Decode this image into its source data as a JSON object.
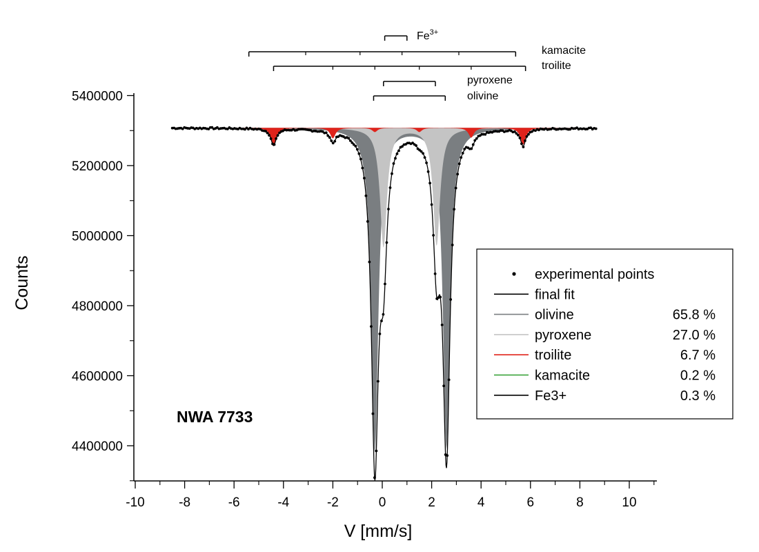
{
  "chart_data": {
    "type": "line",
    "sample_label": "NWA 7733",
    "xlabel": "V [mm/s]",
    "ylabel": "Counts",
    "xlim": [
      -10,
      11
    ],
    "ylim": [
      4300000,
      5400000
    ],
    "x_ticks": [
      -10,
      -8,
      -6,
      -4,
      -2,
      0,
      2,
      4,
      6,
      8,
      10
    ],
    "x_tick_labels": [
      "-10",
      "-8",
      "-6",
      "-4",
      "-2",
      "0",
      "2",
      "4",
      "6",
      "8",
      "10"
    ],
    "y_ticks": [
      4400000,
      4600000,
      4800000,
      5000000,
      5200000,
      5400000
    ],
    "y_tick_labels": [
      "4400000",
      "4600000",
      "4800000",
      "5000000",
      "5200000",
      "5400000"
    ],
    "baseline": 5308000,
    "x_range_data": [
      -8.5,
      8.7
    ],
    "olivine_peaks": [
      {
        "center": -0.3,
        "depth": 925000,
        "hwhm": 0.17
      },
      {
        "center": 2.6,
        "depth": 915000,
        "hwhm": 0.17
      }
    ],
    "pyroxene_peaks": [
      {
        "center": 0.05,
        "depth": 340000,
        "hwhm": 0.17
      },
      {
        "center": 2.2,
        "depth": 335000,
        "hwhm": 0.17
      }
    ],
    "troilite_peaks": [
      {
        "center": -4.4,
        "depth": 48000,
        "hwhm": 0.13
      },
      {
        "center": -2.0,
        "depth": 30000,
        "hwhm": 0.13
      },
      {
        "center": -0.3,
        "depth": 12000,
        "hwhm": 0.13
      },
      {
        "center": 1.5,
        "depth": 12000,
        "hwhm": 0.13
      },
      {
        "center": 3.6,
        "depth": 28000,
        "hwhm": 0.13
      },
      {
        "center": 5.7,
        "depth": 48000,
        "hwhm": 0.13
      }
    ],
    "stick_diagram": {
      "fe3": {
        "label": "Fe",
        "sup": "3+",
        "x_start": 0.1,
        "x_end": 1.0
      },
      "kamacite": {
        "label": "kamacite",
        "x_start": -5.4,
        "x_end": 5.4,
        "ticks": [
          -3.1,
          -0.9,
          0.8,
          3.1
        ]
      },
      "troilite": {
        "label": "troilite",
        "x_start": -4.4,
        "x_end": 5.8,
        "ticks": [
          -2.0,
          -0.3,
          1.5,
          3.6
        ]
      },
      "pyroxene": {
        "label": "pyroxene",
        "x_start": 0.05,
        "x_end": 2.15
      },
      "olivine": {
        "label": "olivine",
        "x_start": -0.35,
        "x_end": 2.55
      }
    },
    "legend": {
      "position": "bottom-right",
      "entries": [
        {
          "label": "experimental points",
          "percent": "",
          "color": "#000000",
          "marker": "dot"
        },
        {
          "label": "final fit",
          "percent": "",
          "color": "#000000",
          "marker": "line"
        },
        {
          "label": "olivine",
          "percent": "65.8 %",
          "color": "#7a7e81",
          "marker": "line"
        },
        {
          "label": "pyroxene",
          "percent": "27.0 %",
          "color": "#c4c4c4",
          "marker": "line"
        },
        {
          "label": "troilite",
          "percent": "6.7 %",
          "color": "#e0231b",
          "marker": "line"
        },
        {
          "label": "kamacite",
          "percent": "0.2 %",
          "color": "#2e9e2e",
          "marker": "line"
        },
        {
          "label": "Fe3+",
          "percent": "0.3 %",
          "color": "#000000",
          "marker": "line"
        }
      ]
    },
    "colors": {
      "olivine": "#7a7e81",
      "pyroxene": "#c4c4c4",
      "troilite": "#e0231b",
      "kamacite": "#2e9e2e",
      "fit": "#000000",
      "points": "#000000"
    },
    "grid": false
  }
}
